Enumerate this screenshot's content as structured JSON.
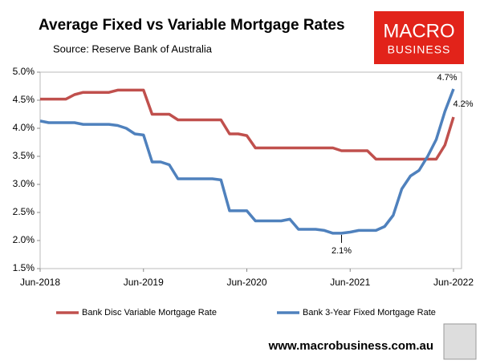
{
  "chart_data": {
    "type": "line",
    "title": "Average Fixed vs Variable Mortgage Rates",
    "subtitle": "Source: Reserve Bank of Australia",
    "logo_text": [
      "MACRO",
      "BUSINESS"
    ],
    "website": "www.macrobusiness.com.au",
    "categories": [
      "Jun-2018",
      null,
      null,
      null,
      null,
      null,
      null,
      null,
      null,
      null,
      null,
      null,
      "Jun-2019",
      null,
      null,
      null,
      null,
      null,
      null,
      null,
      null,
      null,
      null,
      null,
      "Jun-2020",
      null,
      null,
      null,
      null,
      null,
      null,
      null,
      null,
      null,
      null,
      null,
      "Jun-2021",
      null,
      null,
      null,
      null,
      null,
      null,
      null,
      null,
      null,
      null,
      null,
      "Jun-2022"
    ],
    "series": [
      {
        "name": "Bank Disc Variable Mortgage Rate",
        "color": "#c0504d",
        "values": [
          4.52,
          4.52,
          4.52,
          4.52,
          4.6,
          4.64,
          4.64,
          4.64,
          4.64,
          4.68,
          4.68,
          4.68,
          4.68,
          4.25,
          4.25,
          4.25,
          4.15,
          4.15,
          4.15,
          4.15,
          4.15,
          4.15,
          3.9,
          3.9,
          3.87,
          3.65,
          3.65,
          3.65,
          3.65,
          3.65,
          3.65,
          3.65,
          3.65,
          3.65,
          3.65,
          3.6,
          3.6,
          3.6,
          3.6,
          3.45,
          3.45,
          3.45,
          3.45,
          3.45,
          3.45,
          3.45,
          3.45,
          3.7,
          4.2
        ],
        "value_labels": [
          null,
          null,
          null,
          null,
          null,
          null,
          null,
          null,
          null,
          null,
          null,
          null,
          null,
          null,
          null,
          null,
          null,
          null,
          null,
          null,
          null,
          null,
          null,
          null,
          null,
          null,
          null,
          null,
          null,
          null,
          null,
          null,
          null,
          null,
          null,
          null,
          null,
          null,
          null,
          null,
          null,
          null,
          null,
          null,
          null,
          null,
          null,
          null,
          "4.2%"
        ]
      },
      {
        "name": "Bank 3-Year Fixed Mortgage Rate",
        "color": "#4f81bd",
        "values": [
          4.13,
          4.1,
          4.1,
          4.1,
          4.1,
          4.07,
          4.07,
          4.07,
          4.07,
          4.05,
          4.0,
          3.9,
          3.88,
          3.4,
          3.4,
          3.35,
          3.1,
          3.1,
          3.1,
          3.1,
          3.1,
          3.08,
          2.53,
          2.53,
          2.53,
          2.35,
          2.35,
          2.35,
          2.35,
          2.38,
          2.2,
          2.2,
          2.2,
          2.18,
          2.13,
          2.13,
          2.15,
          2.18,
          2.18,
          2.18,
          2.25,
          2.45,
          2.92,
          3.15,
          3.25,
          3.5,
          3.8,
          4.3,
          4.7
        ],
        "value_labels": [
          null,
          null,
          null,
          null,
          null,
          null,
          null,
          null,
          null,
          null,
          null,
          null,
          null,
          null,
          null,
          null,
          null,
          null,
          null,
          null,
          null,
          null,
          null,
          null,
          null,
          null,
          null,
          null,
          null,
          null,
          null,
          null,
          null,
          null,
          null,
          "2.1%",
          null,
          null,
          null,
          null,
          null,
          null,
          null,
          null,
          null,
          null,
          null,
          null,
          "4.7%"
        ]
      }
    ],
    "ylim": [
      1.5,
      5.0
    ],
    "yticks": [
      {
        "value": 1.5,
        "label": "1.5%"
      },
      {
        "value": 2.0,
        "label": "2.0%"
      },
      {
        "value": 2.5,
        "label": "2.5%"
      },
      {
        "value": 3.0,
        "label": "3.0%"
      },
      {
        "value": 3.5,
        "label": "3.5%"
      },
      {
        "value": 4.0,
        "label": "4.0%"
      },
      {
        "value": 4.5,
        "label": "4.5%"
      },
      {
        "value": 5.0,
        "label": "5.0%"
      }
    ],
    "legend": "bottom"
  }
}
